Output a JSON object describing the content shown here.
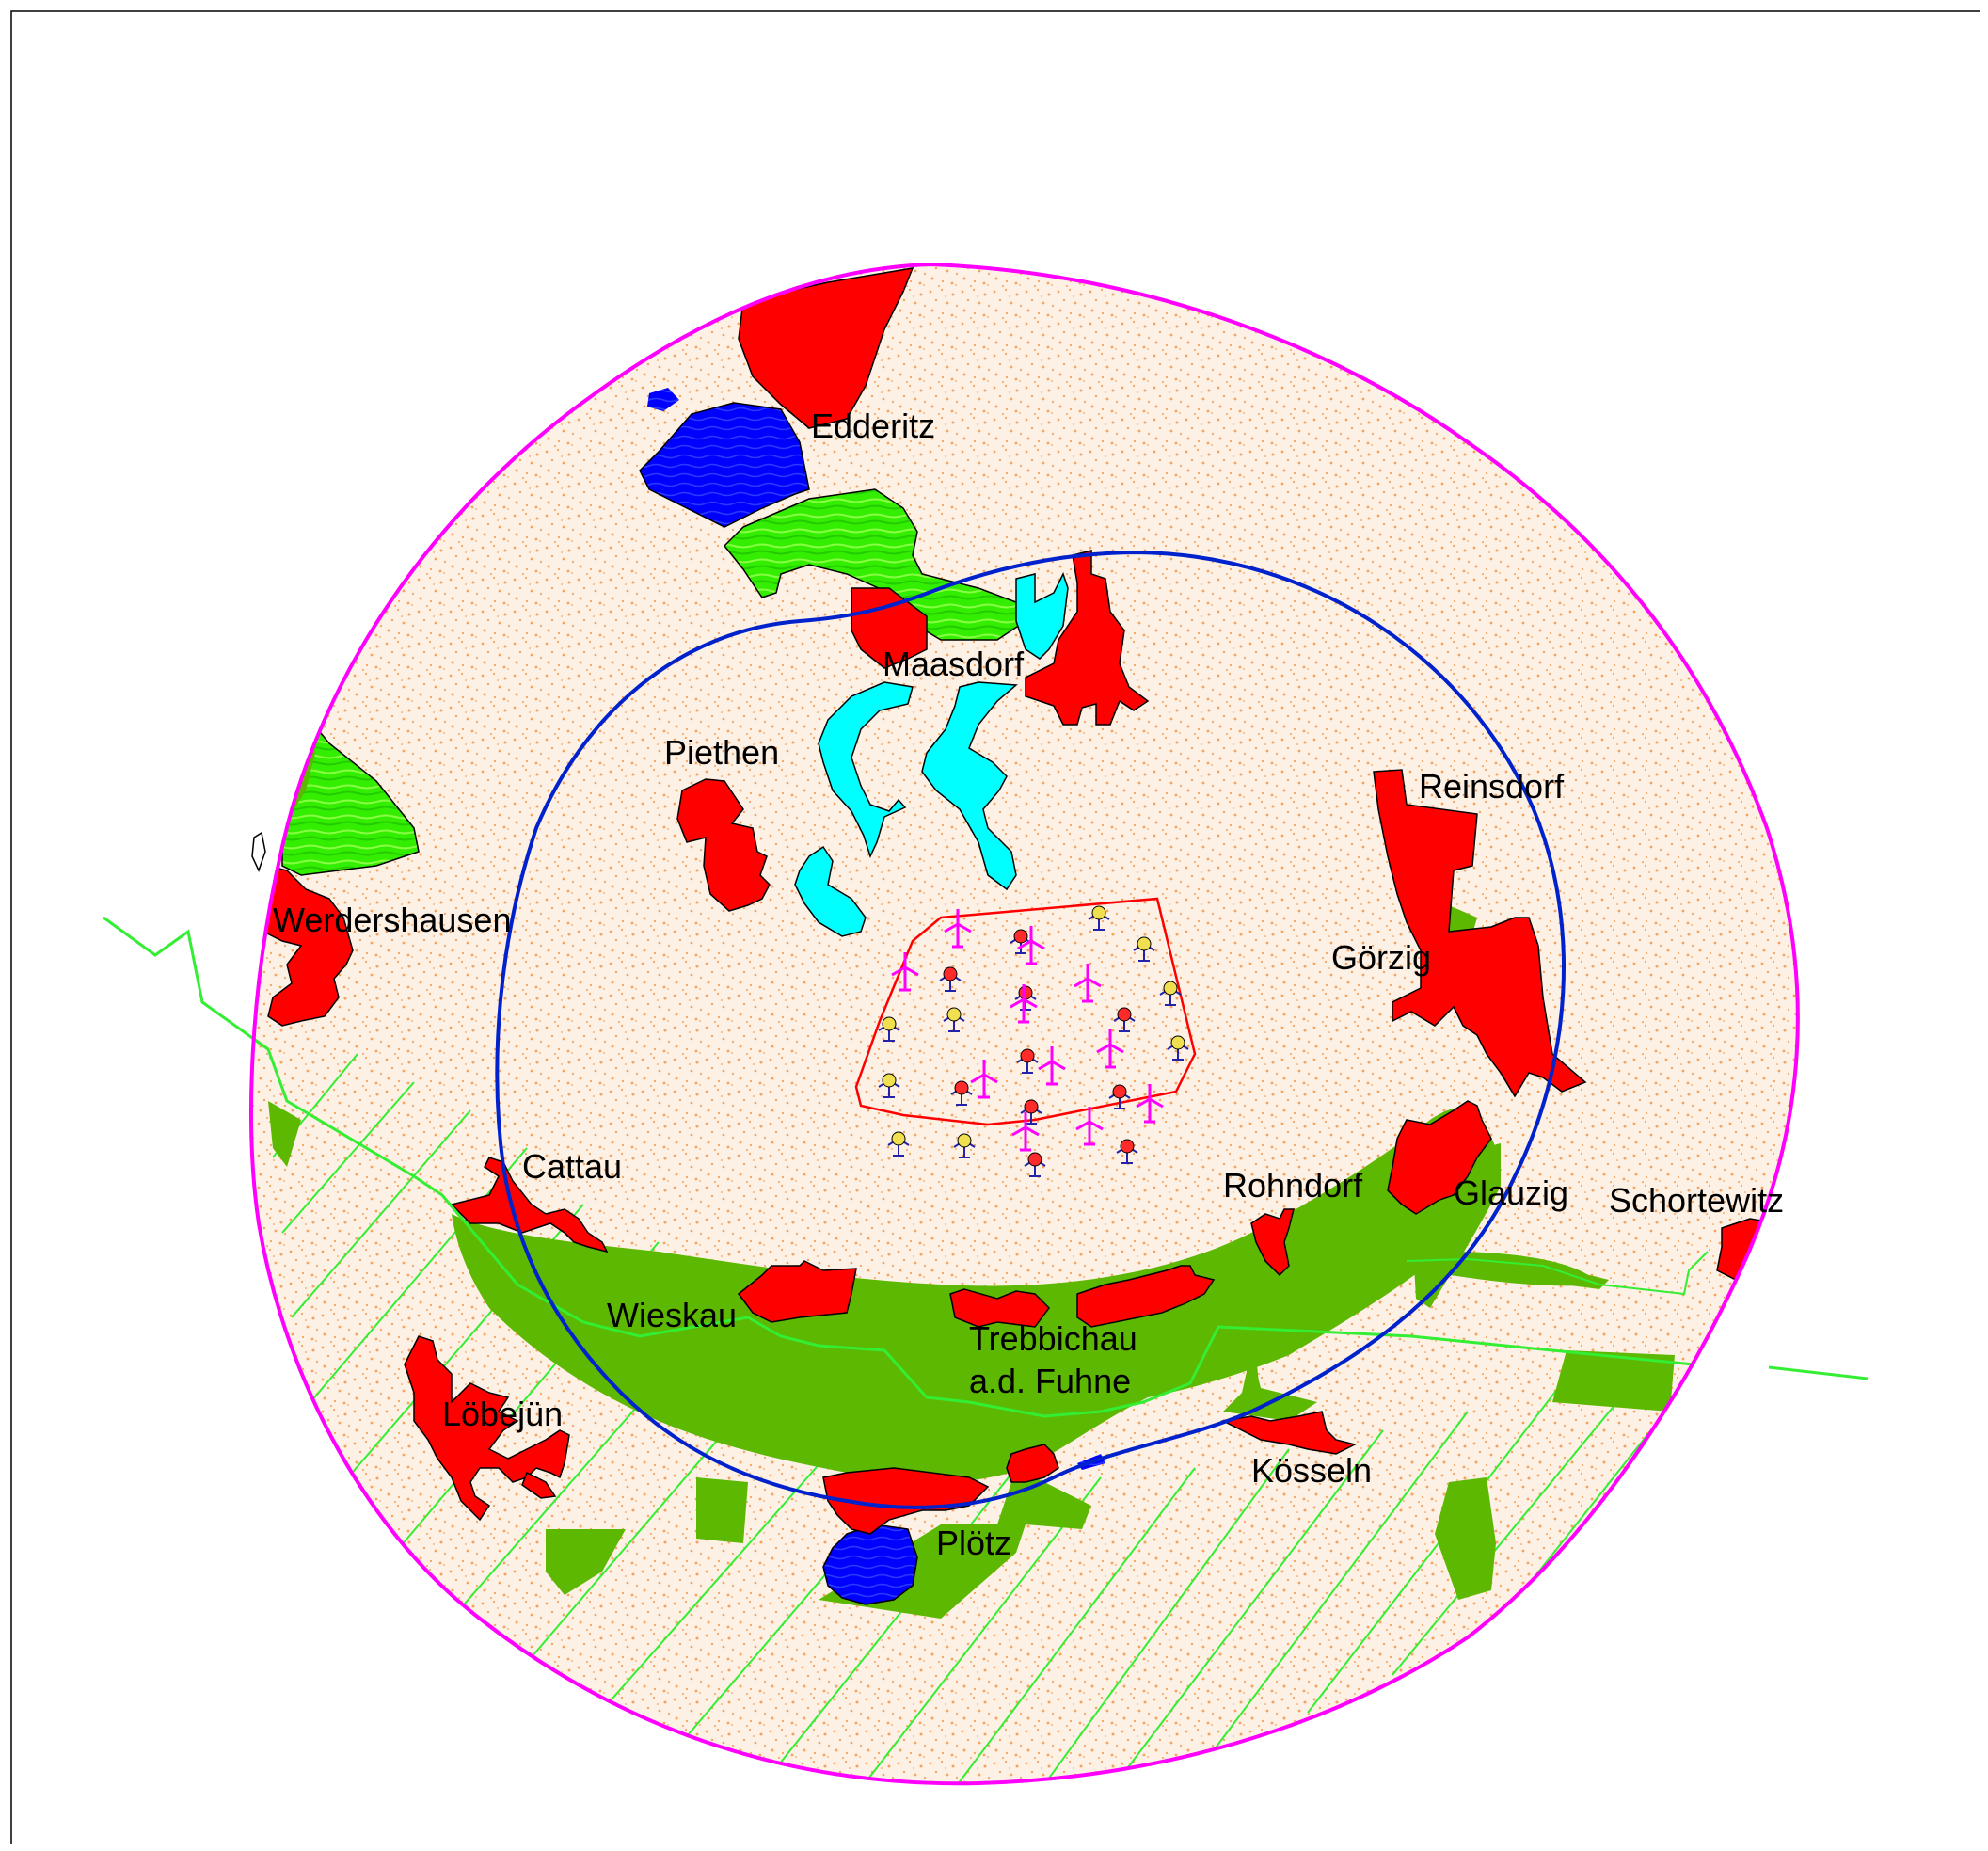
{
  "colors": {
    "background": "#ffffff",
    "frame": "#000000",
    "outer_circle": "#ff00ff",
    "inner_circle": "#0022cc",
    "plan_area": "#ff0000",
    "settlement": "#ff0000",
    "water": "#0000ff",
    "pond": "#00ffff",
    "meadow_hatched": "#33ee00",
    "meadow_solid": "#5cb800",
    "green_line": "#33ee33",
    "sand_fill": "#fdf0e4",
    "sand_dot": "#f6a35e",
    "turbine_planned": "#ff00ff",
    "turbine_existing_red": "#ff2a2a",
    "turbine_existing_yellow": "#f0e050",
    "turbine_outline": "#2222aa"
  },
  "places": {
    "edderitz": "Edderitz",
    "maasdorf": "Maasdorf",
    "piethen": "Piethen",
    "reinsdorf": "Reinsdorf",
    "werdershausen": "Werdershausen",
    "goerzig": "Görzig",
    "cattau": "Cattau",
    "rohndorf": "Rohndorf",
    "glauzig": "Glauzig",
    "schortewitz": "Schortewitz",
    "wieskau": "Wieskau",
    "trebbichau_line1": "Trebbichau",
    "trebbichau_line2": "a.d. Fuhne",
    "loebejuen": "Löbejün",
    "koesseln": "Kösseln",
    "ploetz": "Plötz"
  },
  "icons": {
    "planned_turbine": "wind-turbine-icon",
    "existing_turbine": "existing-turbine-icon"
  }
}
